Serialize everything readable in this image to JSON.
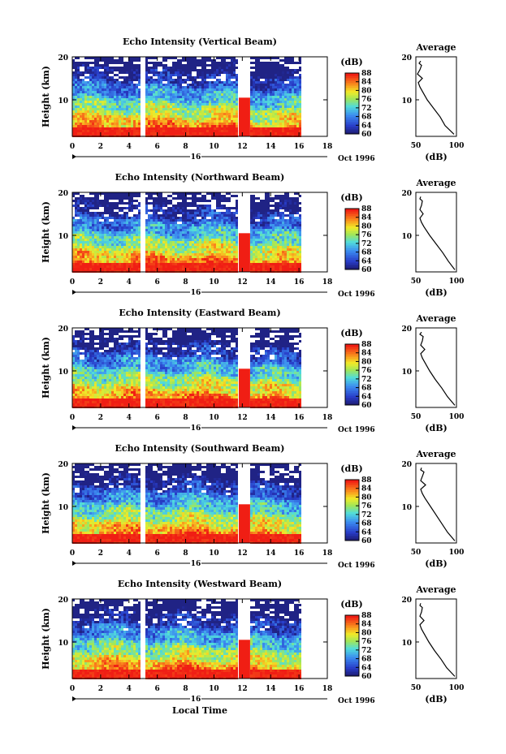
{
  "figure": {
    "xlabel": "Local Time",
    "day_label": "16",
    "date_label": "Oct 1996",
    "ylabel": "Height (km)",
    "avg_title": "Average",
    "avg_xlabel": "(dB)",
    "cbar_unit": "(dB)"
  },
  "chart_data": [
    {
      "type": "heatmap",
      "title": "Echo Intensity (Vertical Beam)",
      "xlabel": "Local Time",
      "ylabel": "Height (km)",
      "x_ticks": [
        0,
        2,
        4,
        6,
        8,
        10,
        12,
        14,
        16,
        18
      ],
      "xlim": [
        0,
        18
      ],
      "y_ticks": [
        10,
        20
      ],
      "ylim": [
        1.5,
        20
      ],
      "colorbar": {
        "unit": "(dB)",
        "ticks": [
          60,
          64,
          68,
          72,
          76,
          80,
          84,
          88
        ],
        "range": [
          60,
          88
        ]
      },
      "data_gaps_hours": [
        [
          4.85,
          5.15
        ],
        [
          11.7,
          12.6
        ],
        [
          16.1,
          18
        ]
      ],
      "average_profile": {
        "title": "Average",
        "xlabel": "(dB)",
        "xlim": [
          50,
          100
        ],
        "x_ticks": [
          50,
          100
        ],
        "y_ticks": [
          10,
          20
        ],
        "height_km": [
          2,
          4,
          6,
          8,
          10,
          12,
          13,
          14,
          15,
          16,
          17,
          18,
          18.5,
          19
        ],
        "db": [
          97,
          86,
          80,
          72,
          64,
          58,
          55,
          53,
          58,
          52,
          55,
          57,
          54,
          56
        ]
      }
    },
    {
      "type": "heatmap",
      "title": "Echo Intensity (Northward Beam)",
      "xlabel": "Local Time",
      "ylabel": "Height (km)",
      "x_ticks": [
        0,
        2,
        4,
        6,
        8,
        10,
        12,
        14,
        16,
        18
      ],
      "xlim": [
        0,
        18
      ],
      "y_ticks": [
        10,
        20
      ],
      "ylim": [
        1.5,
        20
      ],
      "colorbar": {
        "unit": "(dB)",
        "ticks": [
          60,
          64,
          68,
          72,
          76,
          80,
          84,
          88
        ],
        "range": [
          60,
          88
        ]
      },
      "data_gaps_hours": [
        [
          4.85,
          5.15
        ],
        [
          11.7,
          12.6
        ],
        [
          16.1,
          18
        ]
      ],
      "average_profile": {
        "title": "Average",
        "xlabel": "(dB)",
        "xlim": [
          50,
          100
        ],
        "x_ticks": [
          50,
          100
        ],
        "y_ticks": [
          10,
          20
        ],
        "height_km": [
          2,
          4,
          6,
          8,
          10,
          12,
          13,
          14,
          15,
          16,
          17,
          18,
          18.5,
          19
        ],
        "db": [
          98,
          90,
          83,
          75,
          67,
          60,
          57,
          55,
          59,
          55,
          57,
          58,
          55,
          56
        ]
      }
    },
    {
      "type": "heatmap",
      "title": "Echo Intensity (Eastward Beam)",
      "xlabel": "Local Time",
      "ylabel": "Height (km)",
      "x_ticks": [
        0,
        2,
        4,
        6,
        8,
        10,
        12,
        14,
        16,
        18
      ],
      "xlim": [
        0,
        18
      ],
      "y_ticks": [
        10,
        20
      ],
      "ylim": [
        1.5,
        20
      ],
      "colorbar": {
        "unit": "(dB)",
        "ticks": [
          60,
          64,
          68,
          72,
          76,
          80,
          84,
          88
        ],
        "range": [
          60,
          88
        ]
      },
      "data_gaps_hours": [
        [
          4.85,
          5.15
        ],
        [
          11.7,
          12.6
        ],
        [
          16.1,
          18
        ]
      ],
      "average_profile": {
        "title": "Average",
        "xlabel": "(dB)",
        "xlim": [
          50,
          100
        ],
        "x_ticks": [
          50,
          100
        ],
        "y_ticks": [
          10,
          20
        ],
        "height_km": [
          2,
          4,
          6,
          8,
          10,
          12,
          13,
          14,
          15,
          16,
          17,
          18,
          18.5,
          19
        ],
        "db": [
          98,
          89,
          82,
          74,
          67,
          61,
          58,
          56,
          61,
          56,
          58,
          59,
          55,
          57
        ]
      }
    },
    {
      "type": "heatmap",
      "title": "Echo Intensity (Southward Beam)",
      "xlabel": "Local Time",
      "ylabel": "Height (km)",
      "x_ticks": [
        0,
        2,
        4,
        6,
        8,
        10,
        12,
        14,
        16,
        18
      ],
      "xlim": [
        0,
        18
      ],
      "y_ticks": [
        10,
        20
      ],
      "ylim": [
        1.5,
        20
      ],
      "colorbar": {
        "unit": "(dB)",
        "ticks": [
          60,
          64,
          68,
          72,
          76,
          80,
          84,
          88
        ],
        "range": [
          60,
          88
        ]
      },
      "data_gaps_hours": [
        [
          4.85,
          5.15
        ],
        [
          11.7,
          12.6
        ],
        [
          16.1,
          18
        ]
      ],
      "average_profile": {
        "title": "Average",
        "xlabel": "(dB)",
        "xlim": [
          50,
          100
        ],
        "x_ticks": [
          50,
          100
        ],
        "y_ticks": [
          10,
          20
        ],
        "height_km": [
          2,
          4,
          6,
          8,
          10,
          12,
          13,
          14,
          15,
          16,
          17,
          18,
          18.5,
          19
        ],
        "db": [
          98,
          89,
          82,
          75,
          68,
          61,
          58,
          56,
          62,
          56,
          58,
          60,
          56,
          57
        ]
      }
    },
    {
      "type": "heatmap",
      "title": "Echo Intensity (Westward Beam)",
      "xlabel": "Local Time",
      "ylabel": "Height (km)",
      "x_ticks": [
        0,
        2,
        4,
        6,
        8,
        10,
        12,
        14,
        16,
        18
      ],
      "xlim": [
        0,
        18
      ],
      "y_ticks": [
        10,
        20
      ],
      "ylim": [
        1.5,
        20
      ],
      "colorbar": {
        "unit": "(dB)",
        "ticks": [
          60,
          64,
          68,
          72,
          76,
          80,
          84,
          88
        ],
        "range": [
          60,
          88
        ]
      },
      "data_gaps_hours": [
        [
          4.85,
          5.15
        ],
        [
          11.7,
          12.6
        ],
        [
          16.1,
          18
        ]
      ],
      "average_profile": {
        "title": "Average",
        "xlabel": "(dB)",
        "xlim": [
          50,
          100
        ],
        "x_ticks": [
          50,
          100
        ],
        "y_ticks": [
          10,
          20
        ],
        "height_km": [
          2,
          4,
          6,
          8,
          10,
          12,
          13,
          14,
          15,
          16,
          17,
          18,
          18.5,
          19
        ],
        "db": [
          98,
          88,
          81,
          73,
          66,
          60,
          57,
          55,
          60,
          55,
          57,
          58,
          55,
          56
        ]
      }
    }
  ]
}
